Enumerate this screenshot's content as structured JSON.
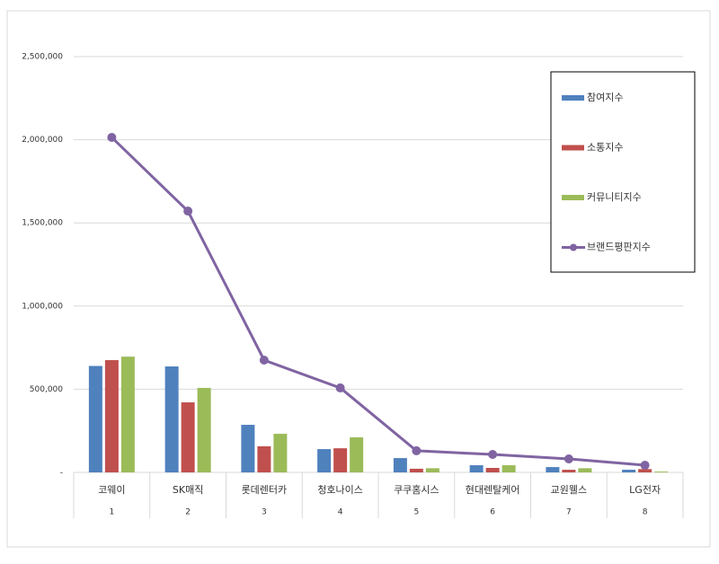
{
  "chart_data": {
    "type": "bar",
    "categories": [
      "코웨이",
      "SK매직",
      "롯데렌터카",
      "청호나이스",
      "쿠쿠홈시스",
      "현대렌탈케어",
      "교원웰스",
      "LG전자"
    ],
    "ranks": [
      1,
      2,
      3,
      4,
      5,
      6,
      7,
      8
    ],
    "series": [
      {
        "name": "참여지수",
        "type": "bar",
        "color": "#4f81bd",
        "values": [
          640000,
          637000,
          286000,
          140000,
          86000,
          43000,
          32000,
          16000
        ]
      },
      {
        "name": "소통지수",
        "type": "bar",
        "color": "#c0504d",
        "values": [
          675000,
          421000,
          157000,
          145000,
          22000,
          27000,
          16000,
          20000
        ]
      },
      {
        "name": "커뮤니티지수",
        "type": "bar",
        "color": "#9bbb59",
        "values": [
          696000,
          508000,
          232000,
          211000,
          25000,
          43000,
          25000,
          5000
        ]
      },
      {
        "name": "브랜드평판지수",
        "type": "line",
        "color": "#8064a2",
        "values": [
          2014000,
          1571000,
          675000,
          508000,
          130000,
          108000,
          81000,
          43000
        ]
      }
    ],
    "ylim": [
      0,
      2500000
    ],
    "yticks": [
      {
        "value": 0,
        "label": "-"
      },
      {
        "value": 500000,
        "label": "500,000"
      },
      {
        "value": 1000000,
        "label": "1,000,000"
      },
      {
        "value": 1500000,
        "label": "1,500,000"
      },
      {
        "value": 2000000,
        "label": "2,000,000"
      },
      {
        "value": 2500000,
        "label": "2,500,000"
      }
    ],
    "grid": true,
    "legend": "right"
  }
}
